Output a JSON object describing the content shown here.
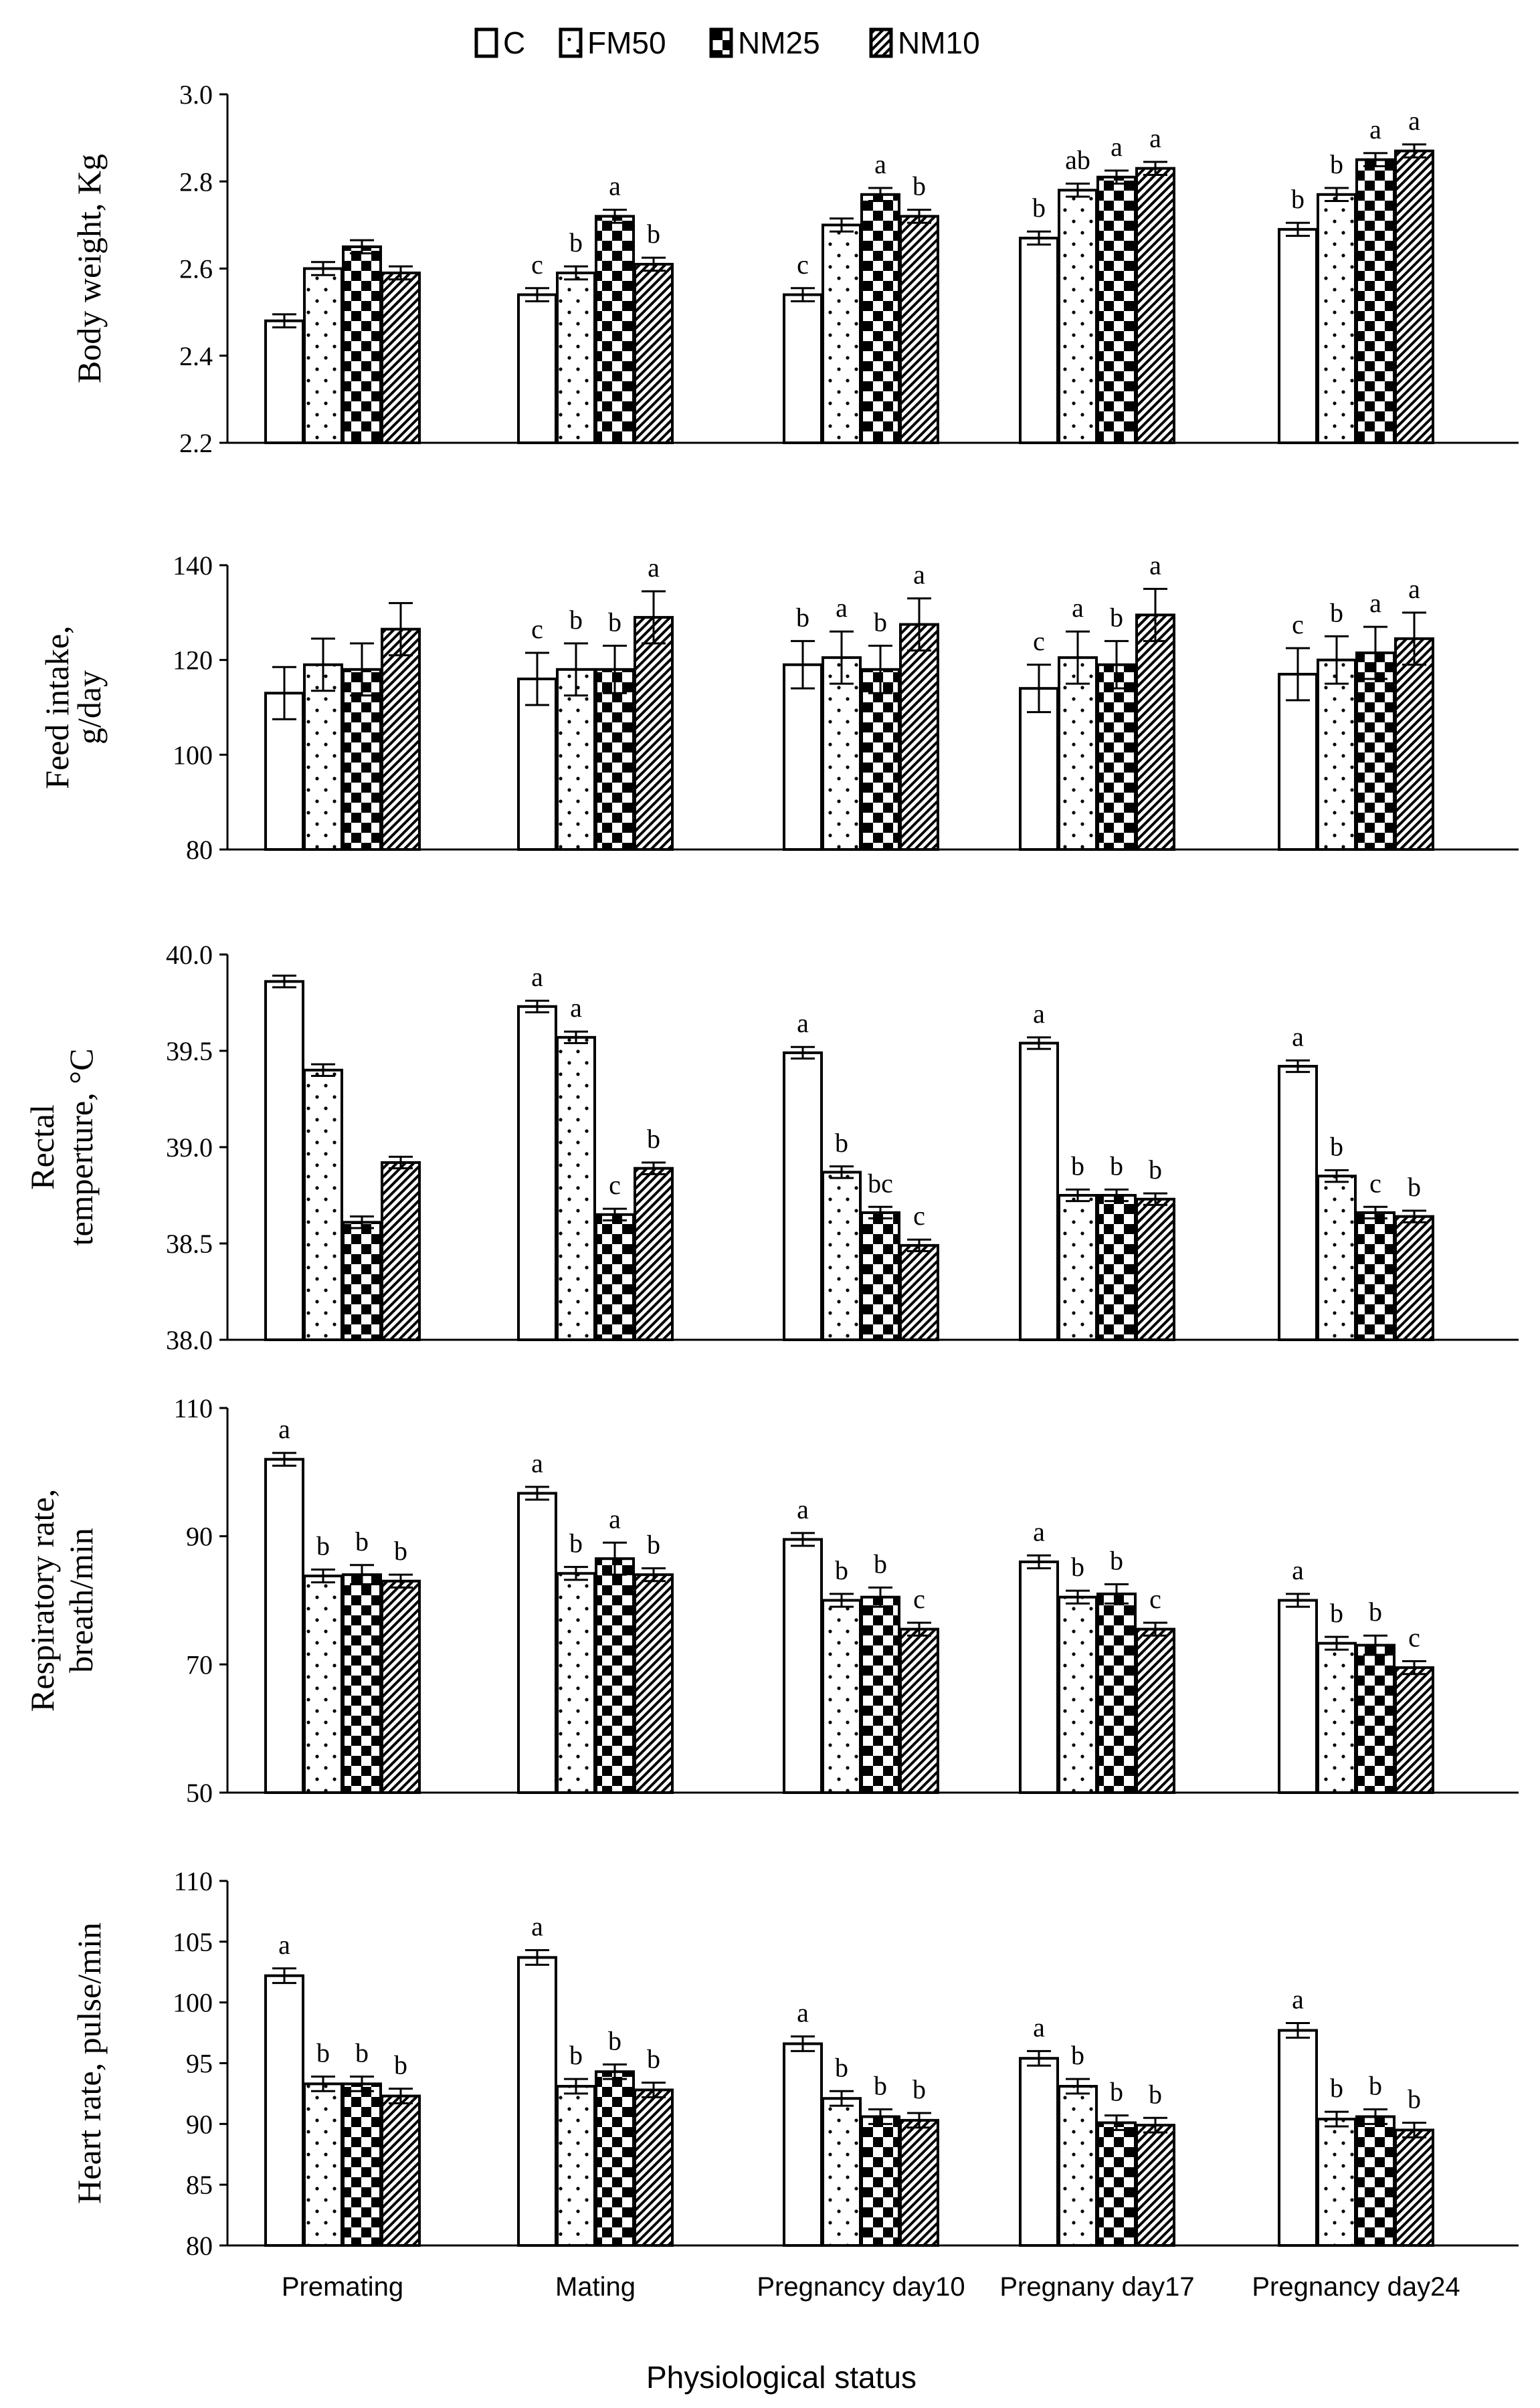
{
  "figure": {
    "xlabel": "Physiological status",
    "categories": [
      "Premating",
      "Mating",
      "Pregnancy day10",
      "Pregnany day17",
      "Pregnancy day24"
    ],
    "legend": [
      {
        "name": "C",
        "pattern": "white"
      },
      {
        "name": "FM50",
        "pattern": "dots"
      },
      {
        "name": "NM25",
        "pattern": "checker"
      },
      {
        "name": "NM10",
        "pattern": "hatch"
      }
    ]
  },
  "chart_data": [
    {
      "type": "bar",
      "ylabel": [
        "Body weight, Kg"
      ],
      "ylim": [
        2.2,
        3.0
      ],
      "yticks": [
        "2.2",
        "2.4",
        "2.6",
        "2.8",
        "3.0"
      ],
      "series": [
        {
          "name": "C",
          "values": [
            2.48,
            2.54,
            2.54,
            2.67,
            2.69
          ],
          "errors": [
            0.015,
            0.015,
            0.015,
            0.015,
            0.015
          ],
          "letters": [
            "",
            "c",
            "c",
            "b",
            "b"
          ]
        },
        {
          "name": "FM50",
          "values": [
            2.6,
            2.59,
            2.7,
            2.78,
            2.77
          ],
          "errors": [
            0.015,
            0.015,
            0.015,
            0.015,
            0.015
          ],
          "letters": [
            "",
            "b",
            "",
            "ab",
            "b"
          ]
        },
        {
          "name": "NM25",
          "values": [
            2.65,
            2.72,
            2.77,
            2.81,
            2.85
          ],
          "errors": [
            0.015,
            0.015,
            0.015,
            0.015,
            0.015
          ],
          "letters": [
            "",
            "a",
            "a",
            "a",
            "a"
          ]
        },
        {
          "name": "NM10",
          "values": [
            2.59,
            2.61,
            2.72,
            2.83,
            2.87
          ],
          "errors": [
            0.015,
            0.015,
            0.015,
            0.015,
            0.015
          ],
          "letters": [
            "",
            "b",
            "b",
            "a",
            "a"
          ]
        }
      ]
    },
    {
      "type": "bar",
      "ylabel": [
        "Feed intake,",
        "g/day"
      ],
      "ylim": [
        80,
        140
      ],
      "yticks": [
        "80",
        "100",
        "120",
        "140"
      ],
      "series": [
        {
          "name": "C",
          "values": [
            113,
            116,
            119,
            114,
            117
          ],
          "errors": [
            5.5,
            5.5,
            5.0,
            5.0,
            5.5
          ],
          "letters": [
            "",
            "c",
            "b",
            "c",
            "c"
          ]
        },
        {
          "name": "FM50",
          "values": [
            119,
            118,
            120.5,
            120.5,
            120
          ],
          "errors": [
            5.5,
            5.5,
            5.5,
            5.5,
            5.0
          ],
          "letters": [
            "",
            "b",
            "a",
            "a",
            "b"
          ]
        },
        {
          "name": "NM25",
          "values": [
            118,
            118,
            118,
            119,
            121.5
          ],
          "errors": [
            5.5,
            5.0,
            5.0,
            5.0,
            5.5
          ],
          "letters": [
            "",
            "b",
            "b",
            "b",
            "a"
          ]
        },
        {
          "name": "NM10",
          "values": [
            126.5,
            129,
            127.5,
            129.5,
            124.5
          ],
          "errors": [
            5.5,
            5.5,
            5.5,
            5.5,
            5.5
          ],
          "letters": [
            "",
            "a",
            "a",
            "a",
            "a"
          ]
        }
      ]
    },
    {
      "type": "bar",
      "ylabel": [
        "Rectal",
        "temperture, °C"
      ],
      "ylim": [
        38.0,
        40.0
      ],
      "yticks": [
        "38.0",
        "38.5",
        "39.0",
        "39.5",
        "40.0"
      ],
      "series": [
        {
          "name": "C",
          "values": [
            39.86,
            39.73,
            39.49,
            39.54,
            39.42
          ],
          "errors": [
            0.03,
            0.03,
            0.03,
            0.03,
            0.03
          ],
          "letters": [
            "",
            "a",
            "a",
            "a",
            "a"
          ]
        },
        {
          "name": "FM50",
          "values": [
            39.4,
            39.57,
            38.87,
            38.75,
            38.85
          ],
          "errors": [
            0.03,
            0.03,
            0.03,
            0.03,
            0.03
          ],
          "letters": [
            "",
            "a",
            "b",
            "b",
            "b"
          ]
        },
        {
          "name": "NM25",
          "values": [
            38.61,
            38.65,
            38.66,
            38.75,
            38.66
          ],
          "errors": [
            0.03,
            0.03,
            0.03,
            0.03,
            0.03
          ],
          "letters": [
            "",
            "c",
            "bc",
            "b",
            "c"
          ]
        },
        {
          "name": "NM10",
          "values": [
            38.92,
            38.89,
            38.49,
            38.73,
            38.64
          ],
          "errors": [
            0.03,
            0.03,
            0.03,
            0.03,
            0.03
          ],
          "letters": [
            "",
            "b",
            "c",
            "b",
            "b"
          ]
        }
      ]
    },
    {
      "type": "bar",
      "ylabel": [
        "Respiratory rate,",
        "breath/min"
      ],
      "ylim": [
        50,
        110
      ],
      "yticks": [
        "50",
        "70",
        "90",
        "110"
      ],
      "series": [
        {
          "name": "C",
          "values": [
            102,
            96.7,
            89.5,
            86,
            80
          ],
          "errors": [
            1.0,
            1.0,
            1.0,
            1.0,
            1.0
          ],
          "letters": [
            "a",
            "a",
            "a",
            "a",
            "a"
          ]
        },
        {
          "name": "FM50",
          "values": [
            83.8,
            84.2,
            80,
            80.5,
            73.3
          ],
          "errors": [
            1.0,
            1.0,
            1.0,
            1.0,
            1.0
          ],
          "letters": [
            "b",
            "b",
            "b",
            "b",
            "b"
          ]
        },
        {
          "name": "NM25",
          "values": [
            84,
            86.5,
            80.5,
            81,
            73
          ],
          "errors": [
            1.5,
            2.5,
            1.5,
            1.5,
            1.5
          ],
          "letters": [
            "b",
            "a",
            "b",
            "b",
            "b"
          ]
        },
        {
          "name": "NM10",
          "values": [
            83,
            84,
            75.5,
            75.5,
            69.5
          ],
          "errors": [
            1.0,
            1.0,
            1.0,
            1.0,
            1.0
          ],
          "letters": [
            "b",
            "b",
            "c",
            "c",
            "c"
          ]
        }
      ]
    },
    {
      "type": "bar",
      "ylabel": [
        "Heart rate, pulse/min"
      ],
      "ylim": [
        80,
        110
      ],
      "yticks": [
        "80",
        "85",
        "90",
        "95",
        "100",
        "105",
        "110"
      ],
      "series": [
        {
          "name": "C",
          "values": [
            102.2,
            103.7,
            96.6,
            95.4,
            97.7
          ],
          "errors": [
            0.6,
            0.6,
            0.6,
            0.6,
            0.6
          ],
          "letters": [
            "a",
            "a",
            "a",
            "a",
            "a"
          ]
        },
        {
          "name": "FM50",
          "values": [
            93.3,
            93.1,
            92.1,
            93.1,
            90.4
          ],
          "errors": [
            0.6,
            0.6,
            0.6,
            0.6,
            0.6
          ],
          "letters": [
            "b",
            "b",
            "b",
            "b",
            "b"
          ]
        },
        {
          "name": "NM25",
          "values": [
            93.3,
            94.3,
            90.6,
            90.1,
            90.6
          ],
          "errors": [
            0.6,
            0.6,
            0.6,
            0.6,
            0.6
          ],
          "letters": [
            "b",
            "b",
            "b",
            "b",
            "b"
          ]
        },
        {
          "name": "NM10",
          "values": [
            92.3,
            92.8,
            90.3,
            89.9,
            89.5
          ],
          "errors": [
            0.6,
            0.6,
            0.6,
            0.6,
            0.6
          ],
          "letters": [
            "b",
            "b",
            "b",
            "b",
            "b"
          ]
        }
      ]
    }
  ]
}
